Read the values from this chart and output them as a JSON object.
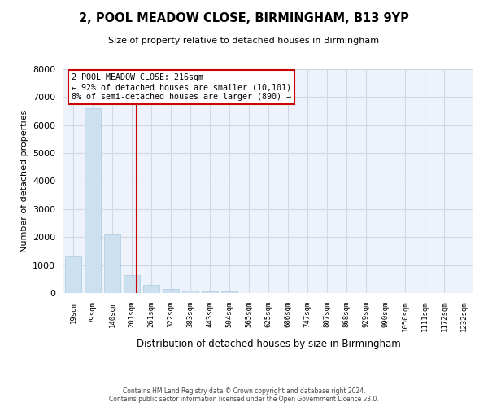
{
  "title": "2, POOL MEADOW CLOSE, BIRMINGHAM, B13 9YP",
  "subtitle": "Size of property relative to detached houses in Birmingham",
  "xlabel": "Distribution of detached houses by size in Birmingham",
  "ylabel": "Number of detached properties",
  "bin_labels": [
    "19sqm",
    "79sqm",
    "140sqm",
    "201sqm",
    "261sqm",
    "322sqm",
    "383sqm",
    "443sqm",
    "504sqm",
    "565sqm",
    "625sqm",
    "686sqm",
    "747sqm",
    "807sqm",
    "868sqm",
    "929sqm",
    "990sqm",
    "1050sqm",
    "1111sqm",
    "1172sqm",
    "1232sqm"
  ],
  "bar_heights": [
    1300,
    6600,
    2100,
    650,
    300,
    150,
    100,
    50,
    50,
    0,
    0,
    0,
    0,
    0,
    0,
    0,
    0,
    0,
    0,
    0,
    0
  ],
  "bar_color": "#cce0f0",
  "bar_edge_color": "#aacce0",
  "vline_color": "#cc0000",
  "annotation_title": "2 POOL MEADOW CLOSE: 216sqm",
  "annotation_line1": "← 92% of detached houses are smaller (10,101)",
  "annotation_line2": "8% of semi-detached houses are larger (890) →",
  "annotation_box_color": "#ffffff",
  "annotation_box_edge_color": "#cc0000",
  "ylim": [
    0,
    8000
  ],
  "yticks": [
    0,
    1000,
    2000,
    3000,
    4000,
    5000,
    6000,
    7000,
    8000
  ],
  "grid_color": "#d0d8e8",
  "bg_color": "#eef2fa",
  "footnote1": "Contains HM Land Registry data © Crown copyright and database right 2024.",
  "footnote2": "Contains public sector information licensed under the Open Government Licence v3.0."
}
